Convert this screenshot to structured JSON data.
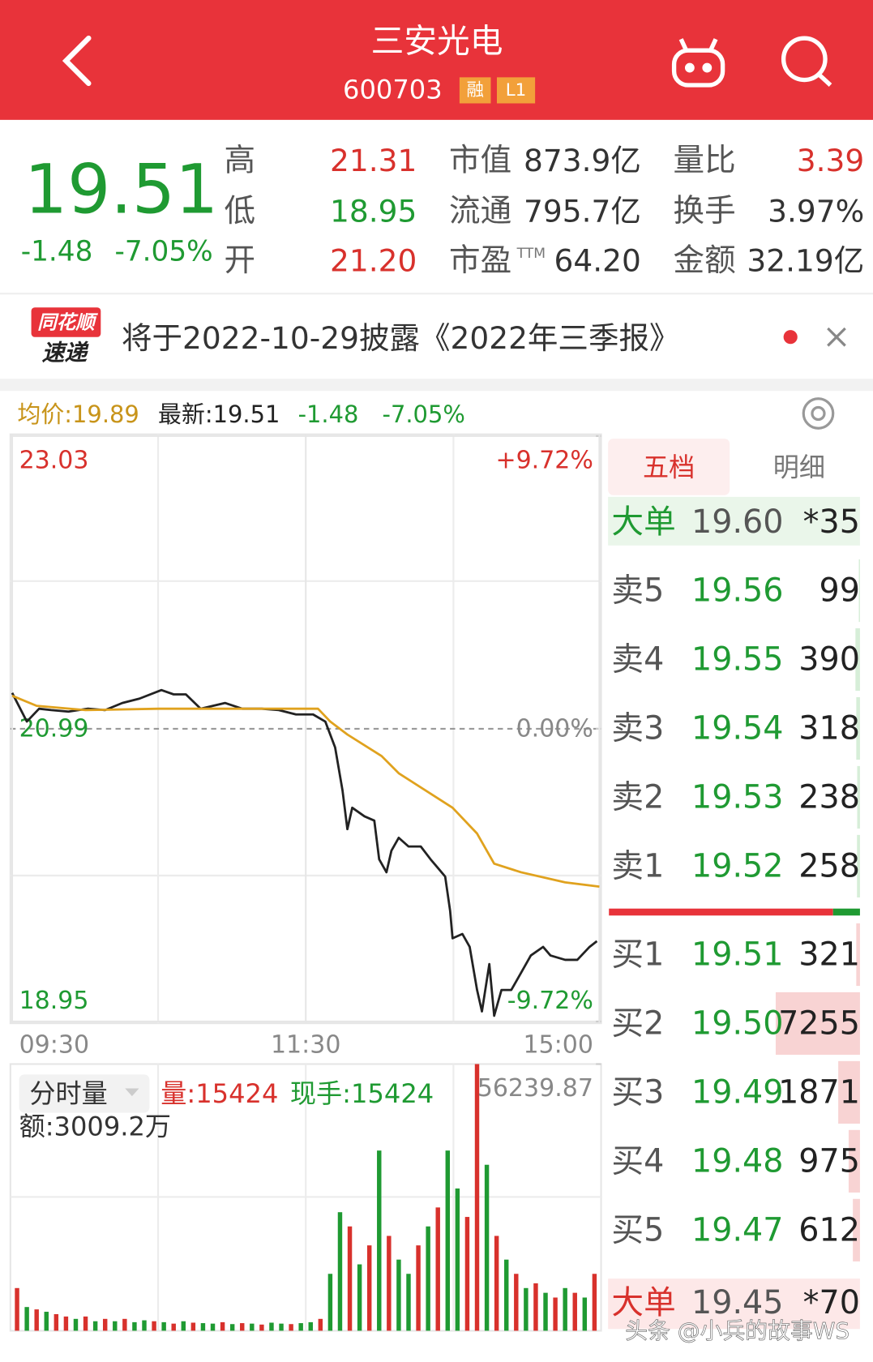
{
  "header": {
    "title": "三安光电",
    "code": "600703",
    "badges": [
      "融",
      "L1"
    ]
  },
  "quote": {
    "price": "19.51",
    "change": "-1.48",
    "change_pct": "-7.05%",
    "stats": [
      {
        "label": "高",
        "value": "21.31",
        "color": "#d8312c"
      },
      {
        "label": "低",
        "value": "18.95",
        "color": "#1f9a32"
      },
      {
        "label": "开",
        "value": "21.20",
        "color": "#d8312c"
      },
      {
        "label": "市值",
        "value": "873.9亿",
        "color": "#333333"
      },
      {
        "label": "流通",
        "value": "795.7亿",
        "color": "#333333"
      },
      {
        "label": "市盈",
        "sup": "TTM",
        "value": "64.20",
        "color": "#333333"
      },
      {
        "label": "量比",
        "value": "3.39",
        "color": "#d8312c"
      },
      {
        "label": "换手",
        "value": "3.97%",
        "color": "#333333"
      },
      {
        "label": "金额",
        "value": "32.19亿",
        "color": "#333333"
      }
    ]
  },
  "notice": {
    "logo_top": "同花顺",
    "logo_bottom": "速递",
    "text": "将于2022-10-29披露《2022年三季报》"
  },
  "info_bar": {
    "avg": "均价:19.89",
    "latest": "最新:19.51",
    "change": "-1.48",
    "change_pct": "-7.05%"
  },
  "volume_info": {
    "selector": "分时量",
    "volume": "量:15424",
    "current": "现手:15424",
    "amount": "额:3009.2万"
  },
  "chart_data": [
    {
      "type": "line",
      "xlim": [
        0,
        240
      ],
      "xticks": [
        {
          "value": 0,
          "label": "09:30"
        },
        {
          "value": 120,
          "label": "11:30"
        },
        {
          "value": 240,
          "label": "15:00"
        }
      ],
      "ylim": [
        18.95,
        23.03
      ],
      "yticks": [
        23.03,
        20.99,
        18.95
      ],
      "y2lim": [
        -9.72,
        9.72
      ],
      "y2ticks": [
        {
          "value": 9.72,
          "label": "+9.72%"
        },
        {
          "value": 0,
          "label": "0.00%"
        },
        {
          "value": -9.72,
          "label": "-9.72%"
        }
      ],
      "series": [
        {
          "color": "#222222",
          "x": [
            0,
            6,
            11,
            16,
            23,
            31,
            38,
            45,
            52,
            61,
            66,
            71,
            77,
            87,
            94,
            102,
            109,
            116,
            123,
            128,
            132,
            135,
            137,
            139,
            144,
            148,
            150,
            153,
            155,
            158,
            162,
            167,
            171,
            174,
            177,
            179,
            180,
            184,
            187,
            190,
            192,
            195,
            197,
            200,
            204,
            208,
            212,
            217,
            220,
            226,
            231,
            236,
            239
          ],
          "values": [
            21.24,
            21.04,
            21.13,
            21.12,
            21.11,
            21.13,
            21.12,
            21.17,
            21.2,
            21.26,
            21.23,
            21.23,
            21.13,
            21.17,
            21.13,
            21.13,
            21.12,
            21.09,
            21.09,
            21.04,
            20.86,
            20.56,
            20.29,
            20.44,
            20.38,
            20.35,
            20.08,
            19.99,
            20.14,
            20.23,
            20.17,
            20.17,
            20.08,
            20.02,
            19.96,
            19.72,
            19.53,
            19.56,
            19.47,
            19.17,
            19.02,
            19.35,
            18.99,
            19.17,
            19.17,
            19.29,
            19.41,
            19.47,
            19.41,
            19.38,
            19.38,
            19.47,
            19.51
          ]
        },
        {
          "color": "#e0a21e",
          "x": [
            0,
            10,
            30,
            60,
            100,
            125,
            130,
            137,
            151,
            158,
            180,
            190,
            197,
            208,
            226,
            240
          ],
          "values": [
            21.22,
            21.15,
            21.12,
            21.13,
            21.13,
            21.13,
            21.04,
            20.95,
            20.8,
            20.68,
            20.44,
            20.26,
            20.05,
            19.99,
            19.92,
            19.89
          ]
        }
      ]
    },
    {
      "type": "bar",
      "xlim": [
        0,
        240
      ],
      "ylim": [
        0,
        56239.87
      ],
      "yticks": [
        56239.87
      ],
      "x": [
        2,
        6,
        10,
        14,
        18,
        22,
        26,
        30,
        34,
        38,
        42,
        46,
        50,
        54,
        58,
        62,
        66,
        70,
        74,
        78,
        82,
        86,
        90,
        94,
        98,
        102,
        106,
        110,
        114,
        118,
        122,
        126,
        130,
        134,
        138,
        142,
        146,
        150,
        154,
        158,
        162,
        166,
        170,
        174,
        178,
        182,
        186,
        190,
        194,
        198,
        202,
        206,
        210,
        214,
        218,
        222,
        226,
        230,
        234,
        238
      ],
      "values": [
        9000,
        5000,
        4500,
        4000,
        3500,
        3000,
        2500,
        3000,
        2000,
        2500,
        2000,
        2500,
        1800,
        2200,
        2000,
        1800,
        1500,
        2000,
        1700,
        1600,
        1500,
        1800,
        1400,
        1600,
        1500,
        1300,
        1700,
        1500,
        1400,
        1600,
        1800,
        2500,
        12000,
        25000,
        22000,
        14000,
        18000,
        38000,
        20000,
        15000,
        12000,
        18000,
        22000,
        26000,
        38000,
        30000,
        24000,
        56239.87,
        35000,
        20000,
        15000,
        12000,
        9000,
        10000,
        8000,
        7000,
        9000,
        8000,
        7000,
        12000
      ],
      "colors": [
        "#d8312c",
        "#1f9a32",
        "#d8312c",
        "#1f9a32",
        "#d8312c",
        "#d8312c",
        "#1f9a32",
        "#d8312c",
        "#1f9a32",
        "#d8312c",
        "#1f9a32",
        "#d8312c",
        "#1f9a32",
        "#1f9a32",
        "#d8312c",
        "#1f9a32",
        "#d8312c",
        "#1f9a32",
        "#d8312c",
        "#1f9a32",
        "#1f9a32",
        "#d8312c",
        "#1f9a32",
        "#d8312c",
        "#1f9a32",
        "#d8312c",
        "#1f9a32",
        "#1f9a32",
        "#d8312c",
        "#1f9a32",
        "#1f9a32",
        "#d8312c",
        "#1f9a32",
        "#1f9a32",
        "#d8312c",
        "#1f9a32",
        "#d8312c",
        "#1f9a32",
        "#d8312c",
        "#1f9a32",
        "#1f9a32",
        "#d8312c",
        "#1f9a32",
        "#d8312c",
        "#1f9a32",
        "#1f9a32",
        "#d8312c",
        "#d8312c",
        "#1f9a32",
        "#d8312c",
        "#1f9a32",
        "#d8312c",
        "#1f9a32",
        "#d8312c",
        "#1f9a32",
        "#d8312c",
        "#1f9a32",
        "#d8312c",
        "#1f9a32",
        "#d8312c"
      ]
    }
  ],
  "order_book": {
    "tabs": [
      "五档",
      "明细"
    ],
    "big_sell": {
      "label": "大单",
      "price": "19.60",
      "volume": "*35"
    },
    "asks": [
      {
        "label": "卖5",
        "price": "19.56",
        "volume": 99
      },
      {
        "label": "卖4",
        "price": "19.55",
        "volume": 390
      },
      {
        "label": "卖3",
        "price": "19.54",
        "volume": 318
      },
      {
        "label": "卖2",
        "price": "19.53",
        "volume": 238
      },
      {
        "label": "卖1",
        "price": "19.52",
        "volume": 258
      }
    ],
    "bids": [
      {
        "label": "买1",
        "price": "19.51",
        "volume": 321
      },
      {
        "label": "买2",
        "price": "19.50",
        "volume": 7255
      },
      {
        "label": "买3",
        "price": "19.49",
        "volume": 1871
      },
      {
        "label": "买4",
        "price": "19.48",
        "volume": 975
      },
      {
        "label": "买5",
        "price": "19.47",
        "volume": 612
      }
    ],
    "big_buy": {
      "label": "大单",
      "price": "19.45",
      "volume": "*70"
    }
  },
  "watermark": "头条 @小兵的故事WS"
}
